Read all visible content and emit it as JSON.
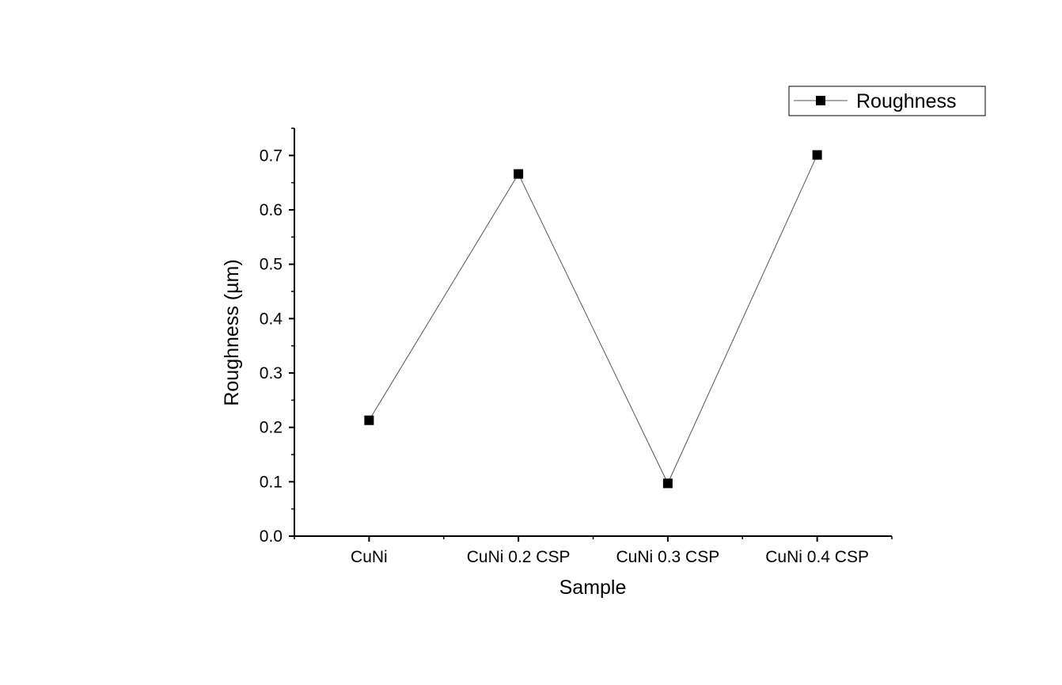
{
  "chart_data": {
    "type": "line",
    "categories": [
      "CuNi",
      "CuNi 0.2 CSP",
      "CuNi 0.3 CSP",
      "CuNi 0.4 CSP"
    ],
    "series": [
      {
        "name": "Roughness",
        "values": [
          0.213,
          0.666,
          0.097,
          0.701
        ]
      }
    ],
    "xlabel": "Sample",
    "ylabel": "Roughness (µm)",
    "ylim": [
      0.0,
      0.75
    ],
    "yticks": [
      "0.0",
      "0.1",
      "0.2",
      "0.3",
      "0.4",
      "0.5",
      "0.6",
      "0.7"
    ],
    "grid": false,
    "legend_position": "top-right",
    "marker": "square",
    "line_color": "#555555",
    "marker_color": "#000000"
  }
}
